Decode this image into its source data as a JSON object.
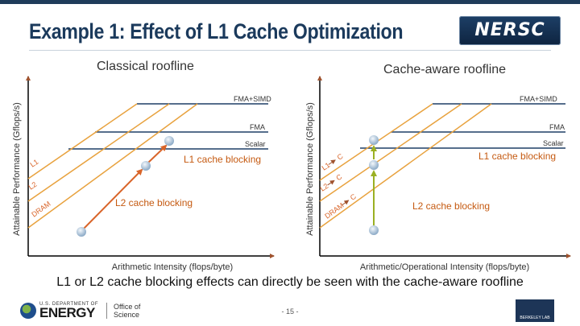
{
  "header": {
    "title": "Example 1: Effect of L1 Cache Optimization",
    "logo_text": "NERSC"
  },
  "colors": {
    "compute_ceiling": "#1f3f66",
    "bandwidth": "#e8a23e",
    "classical_arrow": "#d9652a",
    "cache_aware_arrow": "#9bb022",
    "annotation_text": "#c55a11",
    "point": "#a9c4dc"
  },
  "left_panel": {
    "title": "Classical roofline",
    "y_axis_label": "Attainable Performance (Gflops/s)",
    "x_axis_label": "Arithmetic Intensity (flops/byte)",
    "ceilings": [
      "FMA+SIMD",
      "FMA",
      "Scalar"
    ],
    "bandwidths": [
      "L1",
      "L2",
      "DRAM"
    ],
    "annotations": {
      "l1": "L1 cache blocking",
      "l2": "L2 cache blocking"
    }
  },
  "right_panel": {
    "title": "Cache-aware roofline",
    "y_axis_label": "Attainable Performance (Gflops/s)",
    "x_axis_label": "Arithmetic/Operational Intensity (flops/byte)",
    "ceilings": [
      "FMA+SIMD",
      "FMA",
      "Scalar"
    ],
    "bandwidths": [
      "L1",
      "L2",
      "DRAM"
    ],
    "bandwidth_suffix": "C",
    "annotations": {
      "l1": "L1 cache blocking",
      "l2": "L2 cache blocking"
    }
  },
  "caption": "L1 or L2 cache blocking effects can directly be seen with the cache-aware roofline",
  "footer": {
    "doe_small": "U.S. DEPARTMENT OF",
    "doe_big": "ENERGY",
    "office_line1": "Office of",
    "office_line2": "Science",
    "page_number": "- 15 -",
    "lab_logo_text": "BERKELEY LAB"
  }
}
